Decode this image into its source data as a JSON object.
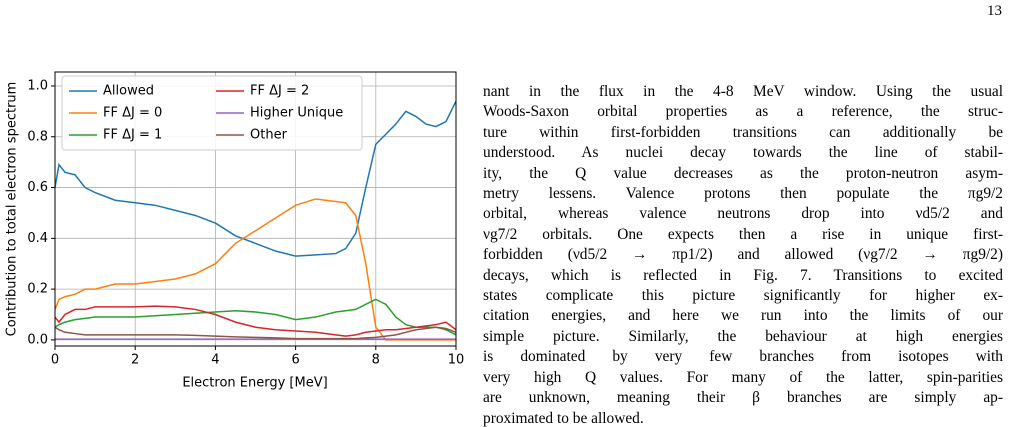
{
  "page_number": "13",
  "chart_data": {
    "type": "line",
    "xlabel": "Electron Energy [MeV]",
    "ylabel": "Contribution to total electron spectrum",
    "x": [
      0,
      0.1,
      0.25,
      0.5,
      0.75,
      1,
      1.5,
      2,
      2.5,
      3,
      3.5,
      4,
      4.5,
      5,
      5.5,
      6,
      6.5,
      7,
      7.25,
      7.5,
      7.75,
      8,
      8.25,
      8.5,
      8.75,
      9,
      9.25,
      9.5,
      9.75,
      10
    ],
    "series": [
      {
        "name": "Allowed",
        "color": "#1f77b4",
        "values": [
          0.6,
          0.69,
          0.66,
          0.65,
          0.6,
          0.58,
          0.55,
          0.54,
          0.53,
          0.51,
          0.49,
          0.46,
          0.41,
          0.38,
          0.35,
          0.33,
          0.335,
          0.34,
          0.36,
          0.42,
          0.6,
          0.77,
          0.81,
          0.85,
          0.9,
          0.88,
          0.85,
          0.84,
          0.86,
          0.94
        ]
      },
      {
        "name": "FF ΔJ = 0",
        "color": "#ff7f0e",
        "values": [
          0.12,
          0.16,
          0.17,
          0.18,
          0.2,
          0.2,
          0.22,
          0.22,
          0.23,
          0.24,
          0.26,
          0.3,
          0.38,
          0.43,
          0.48,
          0.53,
          0.555,
          0.545,
          0.54,
          0.49,
          0.3,
          0.05,
          0,
          0,
          0,
          0,
          0,
          0,
          0,
          0
        ]
      },
      {
        "name": "FF ΔJ = 1",
        "color": "#2ca02c",
        "values": [
          0.05,
          0.06,
          0.07,
          0.08,
          0.085,
          0.09,
          0.09,
          0.09,
          0.095,
          0.1,
          0.105,
          0.11,
          0.115,
          0.11,
          0.1,
          0.08,
          0.09,
          0.11,
          0.115,
          0.12,
          0.14,
          0.16,
          0.14,
          0.09,
          0.06,
          0.05,
          0.05,
          0.05,
          0.04,
          0.02
        ]
      },
      {
        "name": "FF ΔJ = 2",
        "color": "#d62728",
        "values": [
          0.09,
          0.07,
          0.1,
          0.12,
          0.12,
          0.13,
          0.13,
          0.13,
          0.133,
          0.13,
          0.12,
          0.1,
          0.07,
          0.05,
          0.04,
          0.035,
          0.03,
          0.02,
          0.015,
          0.02,
          0.03,
          0.035,
          0.04,
          0.04,
          0.045,
          0.05,
          0.055,
          0.06,
          0.07,
          0.04
        ]
      },
      {
        "name": "Higher Unique",
        "color": "#9467bd",
        "values": [
          0.003,
          0.003,
          0.003,
          0.003,
          0.003,
          0.003,
          0.003,
          0.003,
          0.003,
          0.003,
          0.003,
          0.003,
          0.003,
          0.003,
          0.003,
          0.003,
          0.003,
          0.003,
          0.003,
          0.003,
          0.003,
          0.003,
          0.003,
          0.003,
          0.003,
          0.003,
          0.003,
          0.003,
          0.003,
          0.003
        ]
      },
      {
        "name": "Other",
        "color": "#8c564b",
        "values": [
          0.05,
          0.04,
          0.03,
          0.025,
          0.02,
          0.02,
          0.02,
          0.02,
          0.02,
          0.02,
          0.018,
          0.015,
          0.012,
          0.01,
          0.008,
          0.005,
          0.005,
          0.005,
          0.005,
          0.005,
          0.008,
          0.01,
          0.015,
          0.02,
          0.03,
          0.04,
          0.045,
          0.05,
          0.045,
          0.03
        ]
      }
    ],
    "xlim": [
      0,
      10
    ],
    "ylim": [
      -0.024,
      1.055
    ],
    "xticks": [
      0,
      2,
      4,
      6,
      8,
      10
    ],
    "yticks": [
      {
        "value": 0,
        "label": "0.0"
      },
      0.2,
      0.4,
      0.6,
      0.8,
      {
        "value": 1,
        "label": "1.0"
      }
    ],
    "grid": true,
    "legend": "upper-left"
  },
  "text": {
    "lines": [
      "nant in the flux in the 4-8 MeV window. Using the usual",
      "Woods-Saxon orbital properties as a reference, the struc-",
      "ture within first-forbidden transitions can additionally be",
      "understood. As nuclei decay towards the line of stabil-",
      "ity, the Q value decreases as the proton-neutron asym-",
      "metry lessens. Valence protons then populate the πg9/2",
      "orbital, whereas valence neutrons drop into νd5/2 and",
      "νg7/2 orbitals. One expects then a rise in unique first-",
      "forbidden (νd5/2 → πp1/2) and allowed (νg7/2 → πg9/2)",
      "decays, which is reflected in Fig. 7. Transitions to excited",
      "states complicate this picture significantly for higher ex-",
      "citation energies, and here we run into the limits of our",
      "simple picture. Similarly, the behaviour at high energies",
      "is dominated by very few branches from isotopes with",
      "very high Q values. For many of the latter, spin-parities",
      "are unknown, meaning their β branches are simply ap-",
      "proximated to be allowed."
    ]
  }
}
